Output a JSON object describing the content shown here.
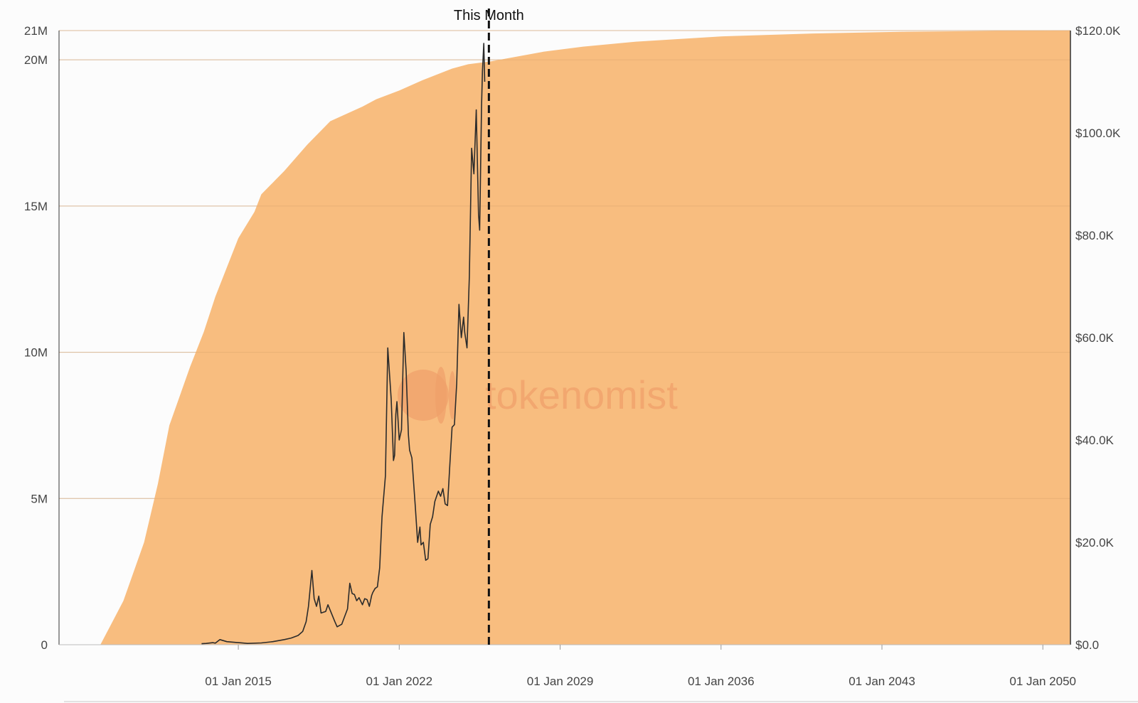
{
  "chart_data": {
    "type": "area",
    "marker_label": "This Month",
    "watermark": "tokenomist",
    "x_axis": {
      "domain": [
        2007.2,
        2051.2
      ],
      "tick_labels": [
        "01 Jan 2015",
        "01 Jan 2022",
        "01 Jan 2029",
        "01 Jan 2036",
        "01 Jan 2043",
        "01 Jan 2050"
      ],
      "tick_values": [
        2015,
        2022,
        2029,
        2036,
        2043,
        2050
      ]
    },
    "y_left": {
      "range": [
        0,
        21000000
      ],
      "tick_labels": [
        "0",
        "5M",
        "10M",
        "15M",
        "20M",
        "21M"
      ],
      "tick_values": [
        0,
        5000000,
        10000000,
        15000000,
        20000000,
        21000000
      ]
    },
    "y_right": {
      "range": [
        0,
        120000
      ],
      "tick_labels": [
        "$0.0",
        "$20.0K",
        "$40.0K",
        "$60.0K",
        "$80.0K",
        "$100.0K",
        "$120.0K"
      ],
      "tick_values": [
        0,
        20000,
        40000,
        60000,
        80000,
        100000,
        120000
      ]
    },
    "marker_x": 2025.9,
    "series": [
      {
        "type": "area",
        "axis": "left",
        "color": "#f8bd7f",
        "x": [
          2009.0,
          2009.4,
          2010.0,
          2010.9,
          2011.5,
          2012.0,
          2012.9,
          2013.5,
          2014.0,
          2014.5,
          2015.0,
          2015.7,
          2016.0,
          2016.5,
          2017.0,
          2018.0,
          2019.0,
          2020.4,
          2021.0,
          2022.0,
          2023.0,
          2024.3,
          2025.0,
          2026.0,
          2028.3,
          2030.0,
          2032.3,
          2036.0,
          2040.0,
          2044.0,
          2048.0,
          2051.2
        ],
        "y": [
          0,
          600000,
          1500000,
          3500000,
          5500000,
          7500000,
          9500000,
          10700000,
          11900000,
          12900000,
          13900000,
          14800000,
          15400000,
          15800000,
          16200000,
          17100000,
          17900000,
          18400000,
          18650000,
          18950000,
          19300000,
          19700000,
          19850000,
          19950000,
          20280000,
          20450000,
          20620000,
          20800000,
          20900000,
          20960000,
          20990000,
          21000000
        ]
      },
      {
        "type": "line",
        "axis": "right",
        "color": "#2b2b2b",
        "x": [
          2013.4,
          2013.6,
          2013.9,
          2014.0,
          2014.2,
          2014.5,
          2014.9,
          2015.1,
          2015.4,
          2016.0,
          2016.5,
          2017.0,
          2017.3,
          2017.6,
          2017.8,
          2017.95,
          2018.05,
          2018.2,
          2018.3,
          2018.4,
          2018.5,
          2018.6,
          2018.8,
          2018.9,
          2019.2,
          2019.3,
          2019.5,
          2019.6,
          2019.75,
          2019.85,
          2019.95,
          2020.05,
          2020.15,
          2020.25,
          2020.4,
          2020.5,
          2020.6,
          2020.7,
          2020.8,
          2020.85,
          2020.95,
          2021.05,
          2021.15,
          2021.25,
          2021.4,
          2021.5,
          2021.65,
          2021.75,
          2021.8,
          2021.85,
          2021.9,
          2022.0,
          2022.1,
          2022.2,
          2022.3,
          2022.4,
          2022.45,
          2022.55,
          2022.7,
          2022.8,
          2022.9,
          2022.95,
          2023.05,
          2023.15,
          2023.25,
          2023.35,
          2023.45,
          2023.55,
          2023.7,
          2023.8,
          2023.9,
          2024.0,
          2024.1,
          2024.2,
          2024.3,
          2024.4,
          2024.5,
          2024.6,
          2024.7,
          2024.8,
          2024.85,
          2024.95,
          2025.05,
          2025.15,
          2025.25,
          2025.35,
          2025.45,
          2025.5,
          2025.58,
          2025.62,
          2025.68,
          2025.72
        ],
        "y": [
          200,
          250,
          400,
          300,
          1000,
          600,
          450,
          380,
          250,
          350,
          600,
          1000,
          1300,
          1800,
          2600,
          4500,
          7500,
          14500,
          9000,
          7500,
          9500,
          6200,
          6500,
          7800,
          4500,
          3500,
          4000,
          5200,
          7000,
          12000,
          10000,
          9800,
          8600,
          9200,
          7800,
          9000,
          8800,
          7500,
          9600,
          10200,
          11000,
          11300,
          15000,
          25000,
          33000,
          58000,
          48000,
          36000,
          37000,
          45000,
          47500,
          40000,
          42000,
          61000,
          53500,
          41000,
          38000,
          36500,
          27000,
          20000,
          23000,
          19500,
          20000,
          16500,
          16800,
          23500,
          25000,
          28000,
          30000,
          29000,
          30500,
          27500,
          27200,
          35000,
          42500,
          43000,
          51000,
          66500,
          60000,
          64000,
          61000,
          58000,
          72000,
          97000,
          92000,
          104500,
          84000,
          81000,
          105000,
          112000,
          117500,
          110000
        ]
      }
    ]
  }
}
